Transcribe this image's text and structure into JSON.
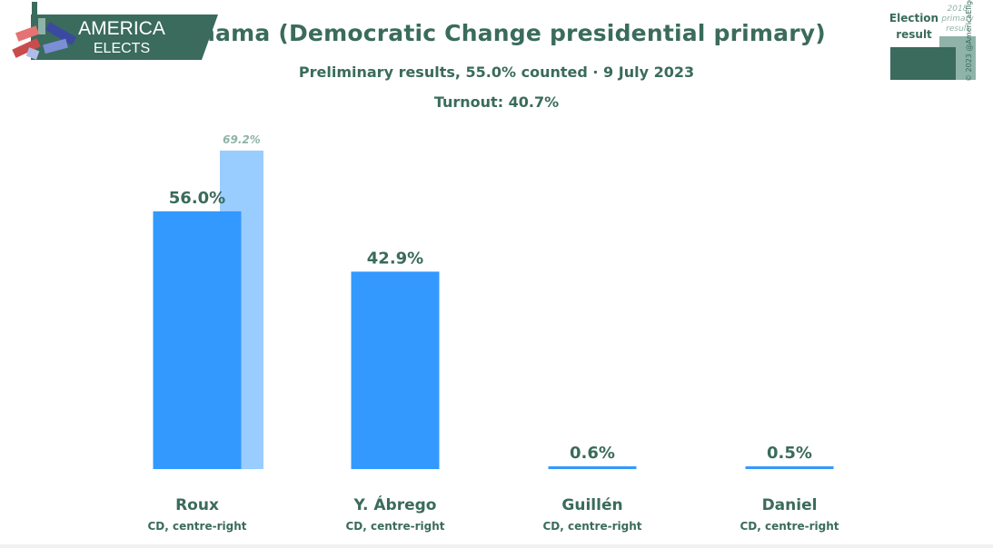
{
  "header": {
    "logo": {
      "line1": "AMERICA",
      "line2": "ELECTS"
    },
    "title": "Panama (Democratic Change presidential primary)",
    "subtitle": "Preliminary results, 55.0% counted · 9 July 2023",
    "turnout": "Turnout: 40.7%"
  },
  "legend": {
    "current_label": "Election result",
    "previous_label": "2018 primary result"
  },
  "copyright": "© 2023 @AmericaElige",
  "colors": {
    "current_bar": "#3399ff",
    "previous_bar": "#99ccff",
    "text": "#3a6b5c",
    "logo_bg": "#3a6b5c",
    "previous_label": "#8fb3a8"
  },
  "chart_data": {
    "type": "bar",
    "categories": [
      "Roux",
      "Y. Ábrego",
      "Guillén",
      "Daniel"
    ],
    "sublabels": [
      "CD, centre-right",
      "CD, centre-right",
      "CD, centre-right",
      "CD, centre-right"
    ],
    "series": [
      {
        "name": "Election result",
        "values": [
          56.0,
          42.9,
          0.6,
          0.5
        ],
        "labels": [
          "56.0%",
          "42.9%",
          "0.6%",
          "0.5%"
        ]
      },
      {
        "name": "2018 primary result",
        "values": [
          69.2,
          null,
          null,
          null
        ],
        "labels": [
          "69.2%",
          "",
          "",
          ""
        ]
      }
    ],
    "ylim": [
      0,
      70
    ]
  }
}
